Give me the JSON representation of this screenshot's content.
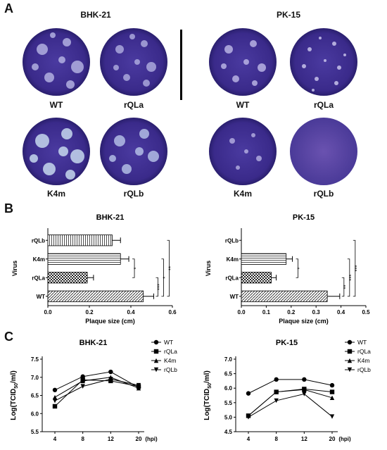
{
  "panel_a": {
    "letter": "A",
    "groups": [
      {
        "title": "BHK-21",
        "dishes": [
          "WT",
          "rQLa",
          "K4m",
          "rQLb"
        ]
      },
      {
        "title": "PK-15",
        "dishes": [
          "WT",
          "rQLa",
          "K4m",
          "rQLb"
        ]
      }
    ]
  },
  "panel_b": {
    "letter": "B"
  },
  "panel_c": {
    "letter": "C"
  },
  "chart_data": [
    {
      "type": "bar",
      "orientation": "horizontal",
      "title": "BHK-21",
      "xlabel": "Plaque size (cm)",
      "ylabel": "Virus",
      "categories": [
        "rQLb",
        "K4m",
        "rQLa",
        "WT"
      ],
      "values": [
        0.31,
        0.35,
        0.19,
        0.46
      ],
      "errors": [
        0.04,
        0.04,
        0.03,
        0.05
      ],
      "xlim": [
        0,
        0.6
      ],
      "xticks": [
        "0.0",
        "0.2",
        "0.4",
        "0.6"
      ],
      "significance": [
        "*",
        "*",
        "***",
        "**"
      ]
    },
    {
      "type": "bar",
      "orientation": "horizontal",
      "title": "PK-15",
      "xlabel": "Plaque size (cm)",
      "ylabel": "Virus",
      "categories": [
        "rQLb",
        "K4m",
        "rQLa",
        "WT"
      ],
      "values": [
        0.0,
        0.18,
        0.12,
        0.345
      ],
      "errors": [
        0.0,
        0.025,
        0.02,
        0.05
      ],
      "xlim": [
        0,
        0.5
      ],
      "xticks": [
        "0.0",
        "0.1",
        "0.2",
        "0.3",
        "0.4",
        "0.5"
      ],
      "significance": [
        "*",
        "***",
        "**",
        "***"
      ]
    },
    {
      "type": "line",
      "title": "BHK-21",
      "ylabel": "Log(TCID50/ml)",
      "xlabel": "(hpi)",
      "x": [
        "4",
        "8",
        "12",
        "20"
      ],
      "ylim": [
        5.5,
        7.5
      ],
      "yticks": [
        "5.5",
        "6.0",
        "6.5",
        "7.0",
        "7.5"
      ],
      "series": [
        {
          "name": "WT",
          "marker": "circle",
          "values": [
            6.65,
            7.02,
            7.15,
            6.72
          ]
        },
        {
          "name": "rQLa",
          "marker": "square",
          "values": [
            6.2,
            6.93,
            6.9,
            6.75
          ]
        },
        {
          "name": "K4m",
          "marker": "triangle",
          "values": [
            6.45,
            6.9,
            7.0,
            6.7
          ]
        },
        {
          "name": "rQLb",
          "marker": "tri-down",
          "values": [
            6.35,
            6.75,
            6.95,
            6.78
          ]
        }
      ]
    },
    {
      "type": "line",
      "title": "PK-15",
      "ylabel": "Log(TCID50/ml)",
      "xlabel": "(hpi)",
      "x": [
        "4",
        "8",
        "12",
        "20"
      ],
      "ylim": [
        4.5,
        7.0
      ],
      "yticks": [
        "4.5",
        "5.0",
        "5.5",
        "6.0",
        "6.5",
        "7.0"
      ],
      "series": [
        {
          "name": "WT",
          "marker": "circle",
          "values": [
            5.82,
            6.3,
            6.3,
            6.1
          ]
        },
        {
          "name": "rQLa",
          "marker": "square",
          "values": [
            5.05,
            5.87,
            5.97,
            5.87
          ]
        },
        {
          "name": "K4m",
          "marker": "triangle",
          "values": [
            5.05,
            5.87,
            5.95,
            5.67
          ]
        },
        {
          "name": "rQLb",
          "marker": "tri-down",
          "values": [
            5.0,
            5.57,
            5.8,
            5.02
          ]
        }
      ]
    }
  ]
}
